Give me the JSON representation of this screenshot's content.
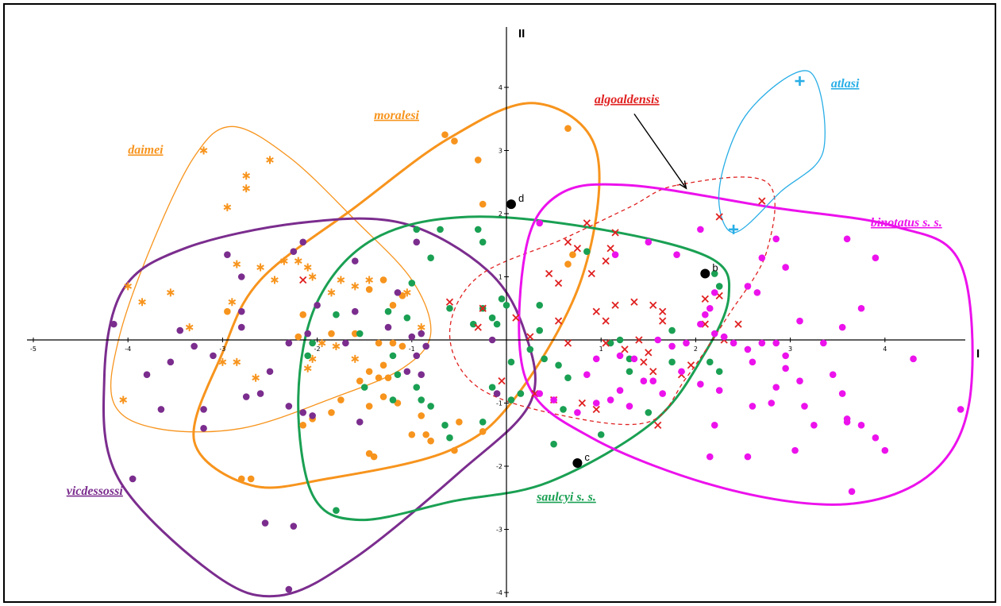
{
  "chart_data": {
    "type": "scatter",
    "x_axis_label": "I",
    "y_axis_label": "II",
    "xlim": [
      -5,
      5
    ],
    "ylim": [
      -4,
      4.5
    ],
    "x_ticks": [
      "-5",
      "-4",
      "-3",
      "-2",
      "-1",
      "1",
      "2",
      "3",
      "4"
    ],
    "y_ticks": [
      "4",
      "3",
      "2",
      "1",
      "-1",
      "-2",
      "-3",
      "-4"
    ],
    "grid": false,
    "colors": {
      "daimei": "#f7941d",
      "moralesi": "#f7941d",
      "vicdessossi": "#7b2d8e",
      "saulcyi": "#1aa053",
      "algoaldensis": "#e02020",
      "binotatus": "#ec12ec",
      "atlasi": "#29aee6",
      "reference": "#000000"
    },
    "groups": [
      {
        "name": "daimei",
        "label": "daimei",
        "marker": "asterisk",
        "color_key": "daimei",
        "points": [
          [
            -3.2,
            3.0
          ],
          [
            -2.75,
            2.6
          ],
          [
            -2.75,
            2.4
          ],
          [
            -2.5,
            2.85
          ],
          [
            -2.95,
            2.1
          ],
          [
            -4.0,
            0.85
          ],
          [
            -3.85,
            0.6
          ],
          [
            -3.55,
            0.75
          ],
          [
            -3.35,
            0.2
          ],
          [
            -2.9,
            0.6
          ],
          [
            -2.85,
            1.2
          ],
          [
            -2.6,
            1.15
          ],
          [
            -2.45,
            0.95
          ],
          [
            -2.35,
            1.25
          ],
          [
            -2.2,
            1.25
          ],
          [
            -2.1,
            1.15
          ],
          [
            -2.05,
            1.0
          ],
          [
            -1.85,
            0.75
          ],
          [
            -1.75,
            0.95
          ],
          [
            -1.6,
            0.85
          ],
          [
            -1.45,
            0.95
          ],
          [
            -1.05,
            0.75
          ],
          [
            -0.9,
            0.2
          ],
          [
            -1.95,
            -0.05
          ],
          [
            -2.05,
            -0.3
          ],
          [
            -2.1,
            -0.45
          ],
          [
            -1.8,
            -0.1
          ],
          [
            -3.0,
            -0.35
          ],
          [
            -2.85,
            -0.35
          ],
          [
            -2.65,
            -0.6
          ],
          [
            -4.05,
            -0.95
          ],
          [
            -1.6,
            -0.3
          ]
        ]
      },
      {
        "name": "moralesi",
        "label": "moralesi",
        "marker": "dot",
        "color_key": "moralesi",
        "points": [
          [
            0.65,
            3.35
          ],
          [
            -0.65,
            3.25
          ],
          [
            -0.55,
            3.15
          ],
          [
            -0.3,
            2.85
          ],
          [
            -0.25,
            2.15
          ],
          [
            0.65,
            1.2
          ],
          [
            0.7,
            1.35
          ],
          [
            -2.15,
            0.4
          ],
          [
            -1.3,
            0.95
          ],
          [
            -1.45,
            0.8
          ],
          [
            -1.2,
            0.55
          ],
          [
            -1.1,
            0.7
          ],
          [
            -2.2,
            0.05
          ],
          [
            -1.85,
            0.1
          ],
          [
            -1.6,
            0.1
          ],
          [
            -1.35,
            -0.05
          ],
          [
            -1.2,
            -0.05
          ],
          [
            -1.1,
            -0.1
          ],
          [
            -1.3,
            -0.4
          ],
          [
            -1.45,
            -0.5
          ],
          [
            -1.55,
            -0.65
          ],
          [
            -1.75,
            -0.95
          ],
          [
            -1.85,
            -1.15
          ],
          [
            -2.05,
            -1.25
          ],
          [
            -2.15,
            -1.35
          ],
          [
            -1.35,
            -0.6
          ],
          [
            -1.25,
            -0.6
          ],
          [
            -1.3,
            -0.9
          ],
          [
            -1.15,
            -1.0
          ],
          [
            -1.45,
            -1.05
          ],
          [
            -0.9,
            -1.2
          ],
          [
            -0.85,
            -1.5
          ],
          [
            -0.8,
            -1.6
          ],
          [
            -1.0,
            -1.5
          ],
          [
            -0.5,
            -1.3
          ],
          [
            -0.25,
            -1.45
          ],
          [
            -0.55,
            -1.75
          ],
          [
            -1.45,
            -1.8
          ],
          [
            -1.4,
            -1.85
          ],
          [
            -2.8,
            -2.2
          ],
          [
            -2.7,
            -2.2
          ],
          [
            -2.95,
            0.45
          ]
        ]
      },
      {
        "name": "vicdessossi",
        "label": "vicdessossi",
        "marker": "dot",
        "color_key": "vicdessossi",
        "points": [
          [
            -4.15,
            0.25
          ],
          [
            -3.45,
            0.15
          ],
          [
            -3.3,
            -0.1
          ],
          [
            -3.55,
            -0.35
          ],
          [
            -3.1,
            -0.25
          ],
          [
            -3.8,
            -0.55
          ],
          [
            -3.65,
            -1.1
          ],
          [
            -3.2,
            -1.1
          ],
          [
            -3.2,
            -1.4
          ],
          [
            -2.95,
            1.35
          ],
          [
            -2.8,
            1.0
          ],
          [
            -2.8,
            0.45
          ],
          [
            -2.8,
            0.2
          ],
          [
            -2.75,
            -0.9
          ],
          [
            -2.6,
            -0.85
          ],
          [
            -2.5,
            -0.5
          ],
          [
            -2.3,
            -0.05
          ],
          [
            -2.1,
            0.1
          ],
          [
            -2.0,
            0.55
          ],
          [
            -2.25,
            1.4
          ],
          [
            -1.6,
            0.45
          ],
          [
            -1.7,
            -0.05
          ],
          [
            -2.3,
            -1.05
          ],
          [
            -2.15,
            -1.15
          ],
          [
            -2.05,
            -1.2
          ],
          [
            -1.55,
            -1.3
          ],
          [
            -1.6,
            1.25
          ],
          [
            -1.15,
            0.75
          ],
          [
            -1.0,
            0.05
          ],
          [
            -0.9,
            0.1
          ],
          [
            -1.25,
            0.2
          ],
          [
            -0.15,
            0.0
          ],
          [
            -0.85,
            -0.1
          ],
          [
            -0.95,
            -0.25
          ],
          [
            -1.05,
            -0.5
          ],
          [
            -0.9,
            -0.55
          ],
          [
            -0.1,
            -0.85
          ],
          [
            -3.95,
            -2.2
          ],
          [
            -2.55,
            -2.9
          ],
          [
            -2.25,
            -2.95
          ],
          [
            -2.3,
            -3.95
          ],
          [
            -2.15,
            1.55
          ],
          [
            -0.95,
            1.55
          ]
        ]
      },
      {
        "name": "saulcyi",
        "label": "saulcyi s. s.",
        "marker": "dot",
        "color_key": "saulcyi",
        "points": [
          [
            -0.95,
            1.75
          ],
          [
            -0.7,
            1.75
          ],
          [
            -0.3,
            1.75
          ],
          [
            -0.25,
            1.55
          ],
          [
            -0.8,
            1.3
          ],
          [
            -1.0,
            0.9
          ],
          [
            -0.6,
            0.5
          ],
          [
            -0.05,
            0.65
          ],
          [
            0.0,
            0.55
          ],
          [
            0.35,
            0.55
          ],
          [
            0.85,
            1.4
          ],
          [
            1.2,
            0.0
          ],
          [
            1.75,
            0.15
          ],
          [
            2.25,
            0.85
          ],
          [
            2.2,
            1.05
          ],
          [
            -1.25,
            0.45
          ],
          [
            -1.05,
            0.35
          ],
          [
            -0.15,
            0.35
          ],
          [
            -0.1,
            0.25
          ],
          [
            -0.35,
            0.25
          ],
          [
            -0.25,
            0.5
          ],
          [
            0.35,
            0.15
          ],
          [
            -2.1,
            -0.25
          ],
          [
            -2.05,
            -0.05
          ],
          [
            -1.8,
            0.4
          ],
          [
            -1.55,
            0.1
          ],
          [
            -1.2,
            -0.25
          ],
          [
            -1.15,
            -0.55
          ],
          [
            -1.5,
            -0.75
          ],
          [
            -1.2,
            -0.95
          ],
          [
            -0.95,
            -0.75
          ],
          [
            -0.9,
            -0.95
          ],
          [
            -0.65,
            -1.35
          ],
          [
            -0.6,
            -1.55
          ],
          [
            -0.15,
            -0.75
          ],
          [
            0.05,
            -0.35
          ],
          [
            0.4,
            -0.3
          ],
          [
            0.55,
            -0.4
          ],
          [
            0.65,
            -0.6
          ],
          [
            0.15,
            -0.85
          ],
          [
            0.05,
            -0.95
          ],
          [
            -0.25,
            -1.3
          ],
          [
            0.6,
            -1.1
          ],
          [
            0.5,
            -1.65
          ],
          [
            1.0,
            -1.5
          ],
          [
            1.5,
            -1.15
          ],
          [
            1.3,
            -0.3
          ],
          [
            1.1,
            -0.05
          ],
          [
            0.25,
            -0.15
          ],
          [
            1.3,
            -0.5
          ],
          [
            1.75,
            -0.35
          ],
          [
            2.15,
            -0.35
          ],
          [
            2.25,
            -0.5
          ],
          [
            -1.8,
            -2.7
          ],
          [
            -0.8,
            -1.05
          ]
        ]
      },
      {
        "name": "algoaldensis",
        "label": "algoaldensis",
        "marker": "x",
        "color_key": "algoaldensis",
        "points": [
          [
            -2.15,
            0.95
          ],
          [
            -0.6,
            0.6
          ],
          [
            -0.25,
            0.5
          ],
          [
            -0.3,
            0.2
          ],
          [
            0.1,
            0.35
          ],
          [
            0.45,
            1.05
          ],
          [
            0.55,
            0.9
          ],
          [
            0.65,
            1.55
          ],
          [
            0.75,
            1.45
          ],
          [
            0.9,
            1.05
          ],
          [
            1.05,
            1.25
          ],
          [
            1.1,
            1.45
          ],
          [
            1.15,
            1.7
          ],
          [
            0.85,
            1.85
          ],
          [
            0.55,
            0.3
          ],
          [
            0.95,
            0.45
          ],
          [
            1.05,
            0.3
          ],
          [
            1.15,
            0.55
          ],
          [
            1.35,
            0.6
          ],
          [
            1.55,
            0.55
          ],
          [
            1.65,
            0.45
          ],
          [
            1.65,
            0.3
          ],
          [
            0.25,
            0.05
          ],
          [
            1.05,
            -0.05
          ],
          [
            1.25,
            -0.15
          ],
          [
            1.4,
            0.0
          ],
          [
            1.45,
            -0.35
          ],
          [
            1.55,
            -0.5
          ],
          [
            1.5,
            -0.2
          ],
          [
            1.95,
            -0.4
          ],
          [
            2.1,
            0.25
          ],
          [
            2.3,
            0.0
          ],
          [
            2.45,
            0.25
          ],
          [
            2.25,
            0.7
          ],
          [
            2.25,
            1.95
          ],
          [
            2.7,
            2.2
          ],
          [
            -0.05,
            -0.65
          ],
          [
            0.3,
            -0.85
          ],
          [
            0.5,
            -0.95
          ],
          [
            0.8,
            -1.0
          ],
          [
            0.95,
            -1.1
          ],
          [
            1.6,
            -1.35
          ],
          [
            0.65,
            -0.05
          ],
          [
            1.85,
            -0.55
          ],
          [
            2.1,
            0.65
          ]
        ]
      },
      {
        "name": "binotatus",
        "label": "binotatus s. s.",
        "marker": "dot",
        "color_key": "binotatus",
        "points": [
          [
            0.35,
            1.85
          ],
          [
            1.15,
            1.35
          ],
          [
            1.5,
            1.55
          ],
          [
            1.8,
            1.35
          ],
          [
            2.05,
            1.75
          ],
          [
            2.7,
            1.3
          ],
          [
            2.85,
            1.6
          ],
          [
            2.95,
            1.15
          ],
          [
            3.6,
            1.6
          ],
          [
            3.9,
            1.3
          ],
          [
            2.55,
            0.85
          ],
          [
            2.65,
            0.75
          ],
          [
            2.2,
            0.75
          ],
          [
            2.15,
            0.5
          ],
          [
            2.1,
            0.4
          ],
          [
            2.05,
            0.25
          ],
          [
            2.2,
            0.1
          ],
          [
            2.3,
            0.05
          ],
          [
            2.4,
            -0.05
          ],
          [
            2.55,
            -0.15
          ],
          [
            2.7,
            -0.05
          ],
          [
            2.85,
            -0.05
          ],
          [
            2.6,
            -0.35
          ],
          [
            2.95,
            -0.25
          ],
          [
            3.35,
            -0.05
          ],
          [
            3.1,
            0.3
          ],
          [
            3.55,
            0.2
          ],
          [
            3.75,
            0.5
          ],
          [
            3.45,
            -0.55
          ],
          [
            3.55,
            -0.85
          ],
          [
            3.1,
            -0.65
          ],
          [
            2.95,
            -0.45
          ],
          [
            2.85,
            -0.75
          ],
          [
            2.6,
            -1.05
          ],
          [
            2.25,
            -0.8
          ],
          [
            2.05,
            -0.7
          ],
          [
            1.85,
            -0.5
          ],
          [
            1.65,
            -0.85
          ],
          [
            1.45,
            -0.65
          ],
          [
            1.2,
            -0.8
          ],
          [
            1.1,
            -0.95
          ],
          [
            0.95,
            -1.0
          ],
          [
            0.75,
            -1.15
          ],
          [
            0.5,
            -0.95
          ],
          [
            0.35,
            -0.85
          ],
          [
            1.35,
            -0.3
          ],
          [
            1.2,
            -0.25
          ],
          [
            1.3,
            -1.05
          ],
          [
            1.55,
            -0.65
          ],
          [
            2.2,
            -1.35
          ],
          [
            2.15,
            -1.85
          ],
          [
            2.55,
            -1.85
          ],
          [
            3.05,
            -1.75
          ],
          [
            3.25,
            -1.35
          ],
          [
            3.6,
            -1.25
          ],
          [
            3.75,
            -1.35
          ],
          [
            3.9,
            -1.55
          ],
          [
            4.0,
            -1.75
          ],
          [
            3.65,
            -2.4
          ],
          [
            0.85,
            -0.55
          ],
          [
            0.95,
            -0.3
          ],
          [
            1.6,
            0.0
          ],
          [
            1.75,
            -0.1
          ],
          [
            1.9,
            -0.05
          ],
          [
            4.3,
            -0.3
          ],
          [
            4.8,
            -1.1
          ],
          [
            3.6,
            -1.3
          ],
          [
            3.15,
            -1.05
          ],
          [
            2.8,
            -1.0
          ]
        ]
      },
      {
        "name": "atlasi",
        "label": "atlasi",
        "marker": "plus",
        "color_key": "atlasi",
        "points": [
          [
            3.1,
            4.1
          ],
          [
            2.4,
            1.75
          ]
        ]
      }
    ],
    "reference_points": [
      {
        "label": "d",
        "x": 0.05,
        "y": 2.15
      },
      {
        "label": "b",
        "x": 2.1,
        "y": 1.05
      },
      {
        "label": "c",
        "x": 0.75,
        "y": -1.95
      }
    ],
    "annotations": [
      {
        "label": "daimei"
      },
      {
        "label": "moralesi"
      },
      {
        "label": "algoaldensis"
      },
      {
        "label": "atlasi"
      },
      {
        "label": "binotatus s. s."
      },
      {
        "label": "vicdessossi"
      },
      {
        "label": "saulcyi s. s."
      }
    ]
  }
}
